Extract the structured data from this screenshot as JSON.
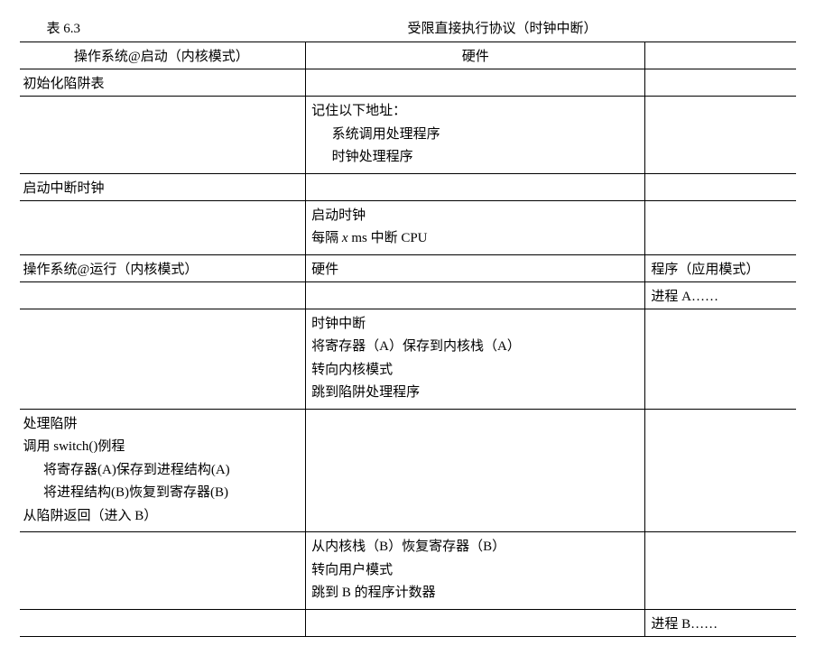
{
  "header": {
    "table_label": "表 6.3",
    "table_title": "受限直接执行协议（时钟中断）"
  },
  "table": {
    "head1": {
      "col1": "操作系统@启动（内核模式）",
      "col2": "硬件"
    },
    "rows": [
      {
        "c1": "初始化陷阱表",
        "c2": "",
        "c3": ""
      },
      {
        "c1": "",
        "c2": "记住以下地址：",
        "c2_i1": "系统调用处理程序",
        "c2_i2": "时钟处理程序",
        "c3": ""
      },
      {
        "c1": "启动中断时钟",
        "c2": "",
        "c3": ""
      },
      {
        "c1": "",
        "c2_l1": "启动时钟",
        "c2_l2_pre": "每隔 ",
        "c2_l2_x": "x",
        "c2_l2_post": " ms 中断 CPU",
        "c3": ""
      }
    ],
    "head2": {
      "col1": "操作系统@运行（内核模式）",
      "col2": "硬件",
      "col3": "程序（应用模式）"
    },
    "rows2": [
      {
        "c1": "",
        "c2": "",
        "c3": "进程 A……"
      },
      {
        "c1": "",
        "c2_l1": "时钟中断",
        "c2_l2": "将寄存器（A）保存到内核栈（A）",
        "c2_l3": "转向内核模式",
        "c2_l4": "跳到陷阱处理程序",
        "c3": ""
      },
      {
        "c1_l1": "处理陷阱",
        "c1_l2": "调用 switch()例程",
        "c1_l3": "将寄存器(A)保存到进程结构(A)",
        "c1_l4": "将进程结构(B)恢复到寄存器(B)",
        "c1_l5": "从陷阱返回（进入 B）",
        "c2": "",
        "c3": ""
      },
      {
        "c1": "",
        "c2_l1": "从内核栈（B）恢复寄存器（B）",
        "c2_l2": "转向用户模式",
        "c2_l3": "跳到 B 的程序计数器",
        "c3": ""
      },
      {
        "c1": "",
        "c2": "",
        "c3": "进程 B……"
      }
    ]
  }
}
